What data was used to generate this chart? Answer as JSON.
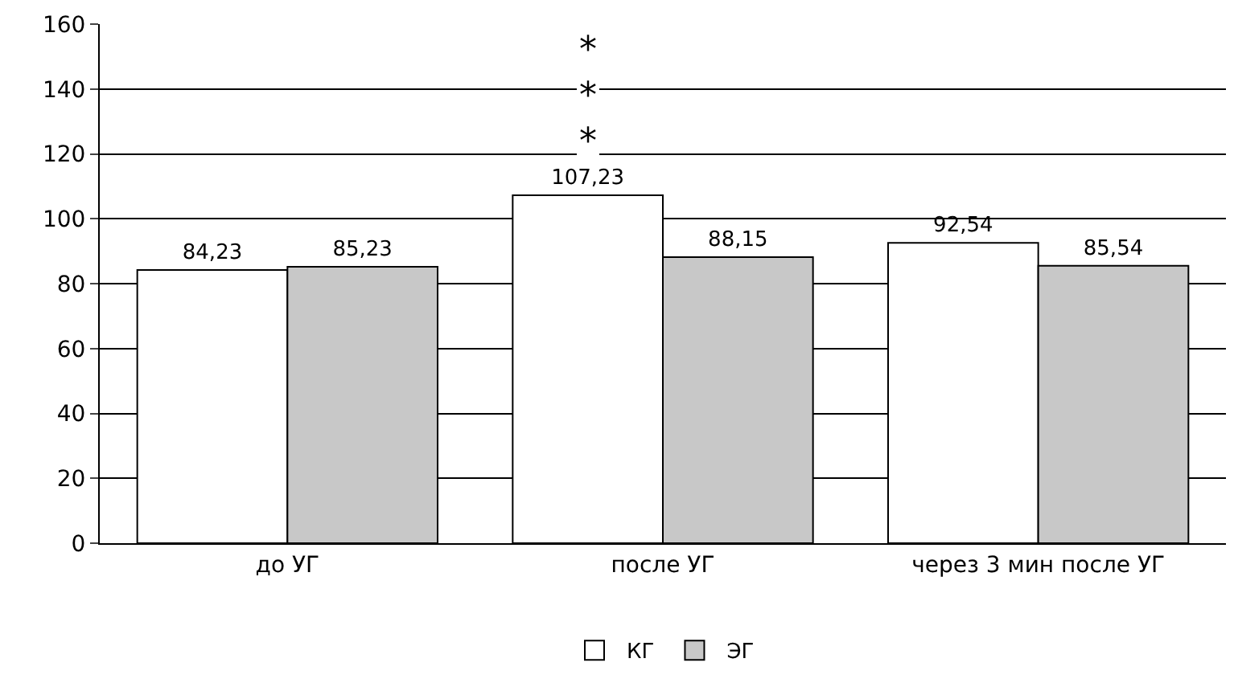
{
  "chart_data": {
    "type": "bar",
    "categories": [
      "до УГ",
      "после УГ",
      "через 3 мин после УГ"
    ],
    "series": [
      {
        "name": "КГ",
        "color": "#ffffff",
        "values": [
          84.23,
          107.23,
          92.54
        ]
      },
      {
        "name": "ЭГ",
        "color": "#c8c8c8",
        "values": [
          85.23,
          88.15,
          85.54
        ]
      }
    ],
    "value_labels": [
      [
        "84,23",
        "107,23",
        "92,54"
      ],
      [
        "85,23",
        "88,15",
        "85,54"
      ]
    ],
    "ylim": [
      0,
      160
    ],
    "yticks": [
      0,
      20,
      40,
      60,
      80,
      100,
      120,
      140,
      160
    ],
    "grid": "y",
    "legend": "bottom",
    "annotations": [
      "***"
    ]
  }
}
